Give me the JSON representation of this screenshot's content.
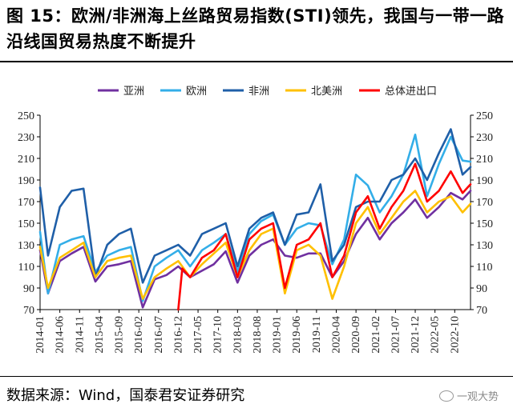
{
  "header": {
    "title": "图 15：欧洲/非洲海上丝路贸易指数(STI)领先，我国与一带一路沿线国贸易热度不断提升"
  },
  "footer": {
    "source": "数据来源：Wind，国泰君安证券研究",
    "watermark": "一观大势"
  },
  "chart_data": {
    "type": "line",
    "title": "",
    "xlabel": "",
    "ylabel": "",
    "ylim": [
      70,
      250
    ],
    "yticks": [
      70,
      90,
      110,
      130,
      150,
      170,
      190,
      210,
      230,
      250
    ],
    "y2ticks": [
      70,
      90,
      110,
      130,
      150,
      170,
      190,
      210,
      230,
      250
    ],
    "grid": false,
    "legend_position": "top",
    "x_tick_labels": [
      "2014-01",
      "2014-06",
      "2014-11",
      "2015-04",
      "2015-09",
      "2016-02",
      "2016-07",
      "2016-12",
      "2017-05",
      "2017-10",
      "2018-03",
      "2018-08",
      "2019-01",
      "2019-06",
      "2019-11",
      "2020-04",
      "2020-09",
      "2021-02",
      "2021-07",
      "2021-12",
      "2022-05",
      "2022-10"
    ],
    "series": [
      {
        "name": "亚洲",
        "color": "#7030a0",
        "points": [
          [
            "2014-01",
            125
          ],
          [
            "2014-03",
            85
          ],
          [
            "2014-06",
            115
          ],
          [
            "2014-09",
            122
          ],
          [
            "2014-12",
            128
          ],
          [
            "2015-03",
            96
          ],
          [
            "2015-06",
            110
          ],
          [
            "2015-09",
            112
          ],
          [
            "2015-12",
            115
          ],
          [
            "2016-03",
            72
          ],
          [
            "2016-06",
            98
          ],
          [
            "2016-09",
            102
          ],
          [
            "2016-12",
            110
          ],
          [
            "2017-03",
            100
          ],
          [
            "2017-06",
            106
          ],
          [
            "2017-09",
            112
          ],
          [
            "2017-12",
            124
          ],
          [
            "2018-03",
            95
          ],
          [
            "2018-06",
            120
          ],
          [
            "2018-09",
            130
          ],
          [
            "2018-12",
            135
          ],
          [
            "2019-03",
            120
          ],
          [
            "2019-06",
            118
          ],
          [
            "2019-09",
            122
          ],
          [
            "2019-12",
            122
          ],
          [
            "2020-03",
            100
          ],
          [
            "2020-06",
            115
          ],
          [
            "2020-09",
            140
          ],
          [
            "2020-12",
            155
          ],
          [
            "2021-03",
            135
          ],
          [
            "2021-06",
            150
          ],
          [
            "2021-09",
            160
          ],
          [
            "2021-12",
            172
          ],
          [
            "2022-03",
            155
          ],
          [
            "2022-06",
            165
          ],
          [
            "2022-09",
            178
          ],
          [
            "2022-12",
            172
          ],
          [
            "2023-02",
            180
          ]
        ]
      },
      {
        "name": "欧洲",
        "color": "#33aee8",
        "points": [
          [
            "2014-01",
            142
          ],
          [
            "2014-03",
            85
          ],
          [
            "2014-06",
            130
          ],
          [
            "2014-09",
            135
          ],
          [
            "2014-12",
            138
          ],
          [
            "2015-03",
            105
          ],
          [
            "2015-06",
            120
          ],
          [
            "2015-09",
            125
          ],
          [
            "2015-12",
            128
          ],
          [
            "2016-03",
            78
          ],
          [
            "2016-06",
            110
          ],
          [
            "2016-09",
            118
          ],
          [
            "2016-12",
            125
          ],
          [
            "2017-03",
            110
          ],
          [
            "2017-06",
            125
          ],
          [
            "2017-09",
            132
          ],
          [
            "2017-12",
            140
          ],
          [
            "2018-03",
            105
          ],
          [
            "2018-06",
            140
          ],
          [
            "2018-09",
            152
          ],
          [
            "2018-12",
            158
          ],
          [
            "2019-03",
            130
          ],
          [
            "2019-06",
            145
          ],
          [
            "2019-09",
            150
          ],
          [
            "2019-12",
            148
          ],
          [
            "2020-03",
            112
          ],
          [
            "2020-06",
            135
          ],
          [
            "2020-09",
            195
          ],
          [
            "2020-12",
            185
          ],
          [
            "2021-03",
            160
          ],
          [
            "2021-06",
            175
          ],
          [
            "2021-09",
            195
          ],
          [
            "2021-12",
            232
          ],
          [
            "2022-03",
            175
          ],
          [
            "2022-06",
            205
          ],
          [
            "2022-09",
            230
          ],
          [
            "2022-12",
            208
          ],
          [
            "2023-02",
            207
          ]
        ]
      },
      {
        "name": "非洲",
        "color": "#1f5fa8",
        "points": [
          [
            "2014-01",
            183
          ],
          [
            "2014-03",
            120
          ],
          [
            "2014-06",
            165
          ],
          [
            "2014-09",
            180
          ],
          [
            "2014-12",
            182
          ],
          [
            "2015-03",
            100
          ],
          [
            "2015-06",
            130
          ],
          [
            "2015-09",
            140
          ],
          [
            "2015-12",
            145
          ],
          [
            "2016-03",
            95
          ],
          [
            "2016-06",
            120
          ],
          [
            "2016-09",
            125
          ],
          [
            "2016-12",
            130
          ],
          [
            "2017-03",
            120
          ],
          [
            "2017-06",
            140
          ],
          [
            "2017-09",
            145
          ],
          [
            "2017-12",
            150
          ],
          [
            "2018-03",
            110
          ],
          [
            "2018-06",
            145
          ],
          [
            "2018-09",
            155
          ],
          [
            "2018-12",
            160
          ],
          [
            "2019-03",
            130
          ],
          [
            "2019-06",
            158
          ],
          [
            "2019-09",
            160
          ],
          [
            "2019-12",
            186
          ],
          [
            "2020-03",
            115
          ],
          [
            "2020-06",
            130
          ],
          [
            "2020-09",
            165
          ],
          [
            "2020-12",
            170
          ],
          [
            "2021-03",
            170
          ],
          [
            "2021-06",
            190
          ],
          [
            "2021-09",
            195
          ],
          [
            "2021-12",
            210
          ],
          [
            "2022-03",
            190
          ],
          [
            "2022-06",
            215
          ],
          [
            "2022-09",
            237
          ],
          [
            "2022-12",
            195
          ],
          [
            "2023-02",
            202
          ]
        ]
      },
      {
        "name": "北美洲",
        "color": "#ffc000",
        "points": [
          [
            "2014-01",
            128
          ],
          [
            "2014-03",
            90
          ],
          [
            "2014-06",
            118
          ],
          [
            "2014-09",
            125
          ],
          [
            "2014-12",
            132
          ],
          [
            "2015-03",
            100
          ],
          [
            "2015-06",
            115
          ],
          [
            "2015-09",
            118
          ],
          [
            "2015-12",
            120
          ],
          [
            "2016-03",
            80
          ],
          [
            "2016-06",
            100
          ],
          [
            "2016-09",
            108
          ],
          [
            "2016-12",
            115
          ],
          [
            "2017-03",
            100
          ],
          [
            "2017-06",
            112
          ],
          [
            "2017-09",
            122
          ],
          [
            "2017-12",
            132
          ],
          [
            "2018-03",
            100
          ],
          [
            "2018-06",
            125
          ],
          [
            "2018-09",
            140
          ],
          [
            "2018-12",
            145
          ],
          [
            "2019-03",
            85
          ],
          [
            "2019-06",
            125
          ],
          [
            "2019-09",
            130
          ],
          [
            "2019-12",
            120
          ],
          [
            "2020-03",
            80
          ],
          [
            "2020-06",
            110
          ],
          [
            "2020-09",
            150
          ],
          [
            "2020-12",
            165
          ],
          [
            "2021-03",
            140
          ],
          [
            "2021-06",
            155
          ],
          [
            "2021-09",
            170
          ],
          [
            "2021-12",
            180
          ],
          [
            "2022-03",
            160
          ],
          [
            "2022-06",
            170
          ],
          [
            "2022-09",
            175
          ],
          [
            "2022-12",
            160
          ],
          [
            "2023-02",
            168
          ]
        ]
      },
      {
        "name": "总体进出口",
        "color": "#ff0000",
        "points": [
          [
            "2016-12",
            70
          ],
          [
            "2017-01",
            108
          ],
          [
            "2017-03",
            100
          ],
          [
            "2017-06",
            118
          ],
          [
            "2017-09",
            125
          ],
          [
            "2017-12",
            140
          ],
          [
            "2018-03",
            100
          ],
          [
            "2018-06",
            135
          ],
          [
            "2018-09",
            145
          ],
          [
            "2018-12",
            150
          ],
          [
            "2019-03",
            90
          ],
          [
            "2019-06",
            130
          ],
          [
            "2019-09",
            135
          ],
          [
            "2019-12",
            150
          ],
          [
            "2020-03",
            100
          ],
          [
            "2020-06",
            120
          ],
          [
            "2020-09",
            160
          ],
          [
            "2020-12",
            175
          ],
          [
            "2021-03",
            145
          ],
          [
            "2021-06",
            165
          ],
          [
            "2021-09",
            180
          ],
          [
            "2021-12",
            205
          ],
          [
            "2022-03",
            170
          ],
          [
            "2022-06",
            180
          ],
          [
            "2022-09",
            198
          ],
          [
            "2022-12",
            178
          ],
          [
            "2023-02",
            186
          ]
        ]
      }
    ]
  }
}
